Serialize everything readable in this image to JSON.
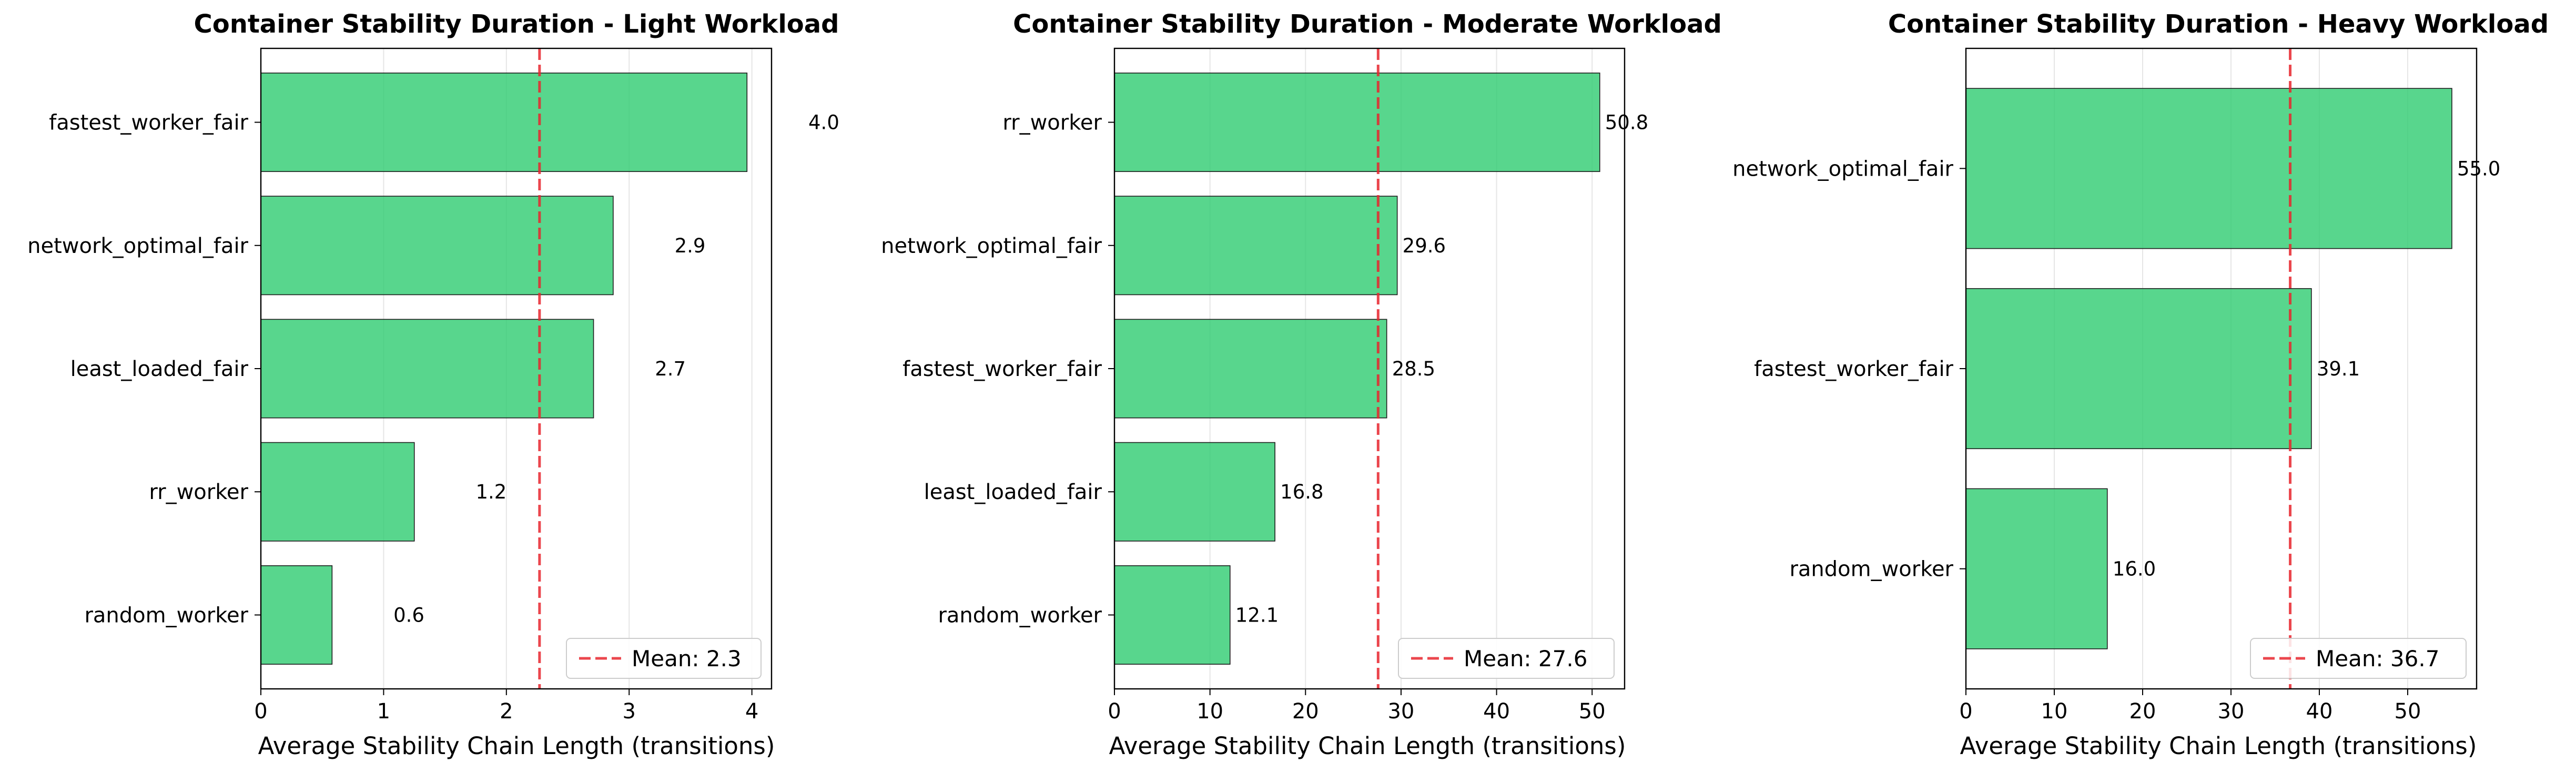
{
  "figure": {
    "bar_color": "#2ecc71",
    "bar_edge_color": "#1e1e1e",
    "mean_line_color": "#e8262e",
    "grid": true
  },
  "chart_data": [
    {
      "type": "bar",
      "orientation": "horizontal",
      "title": "Container Stability Duration - Light Workload",
      "xlabel": "Average Stability Chain Length (transitions)",
      "ylabel": "",
      "categories": [
        "fastest_worker_fair",
        "network_optimal_fair",
        "least_loaded_fair",
        "rr_worker",
        "random_worker"
      ],
      "values": [
        3.96,
        2.87,
        2.71,
        1.25,
        0.58
      ],
      "value_labels": [
        "4.0",
        "2.9",
        "2.7",
        "1.2",
        "0.6"
      ],
      "xlim": [
        0,
        4.16
      ],
      "xticks": [
        0,
        1,
        2,
        3,
        4
      ],
      "mean": 2.27,
      "mean_label": "Mean: 2.3",
      "label_offset": 0.5,
      "legend_position": "lower-right"
    },
    {
      "type": "bar",
      "orientation": "horizontal",
      "title": "Container Stability Duration - Moderate Workload",
      "xlabel": "Average Stability Chain Length (transitions)",
      "ylabel": "",
      "categories": [
        "rr_worker",
        "network_optimal_fair",
        "fastest_worker_fair",
        "least_loaded_fair",
        "random_worker"
      ],
      "values": [
        50.8,
        29.6,
        28.5,
        16.8,
        12.1
      ],
      "value_labels": [
        "50.8",
        "29.6",
        "28.5",
        "16.8",
        "12.1"
      ],
      "xlim": [
        0,
        53.4
      ],
      "xticks": [
        0,
        10,
        20,
        30,
        40,
        50
      ],
      "mean": 27.6,
      "mean_label": "Mean: 27.6",
      "label_offset": 0.5,
      "legend_position": "lower-right"
    },
    {
      "type": "bar",
      "orientation": "horizontal",
      "title": "Container Stability Duration - Heavy Workload",
      "xlabel": "Average Stability Chain Length (transitions)",
      "ylabel": "",
      "categories": [
        "network_optimal_fair",
        "fastest_worker_fair",
        "random_worker"
      ],
      "values": [
        55.0,
        39.1,
        16.0
      ],
      "value_labels": [
        "55.0",
        "39.1",
        "16.0"
      ],
      "xlim": [
        0,
        57.8
      ],
      "xticks": [
        0,
        10,
        20,
        30,
        40,
        50
      ],
      "mean": 36.7,
      "mean_label": "Mean: 36.7",
      "label_offset": 0.5,
      "legend_position": "lower-right"
    }
  ]
}
